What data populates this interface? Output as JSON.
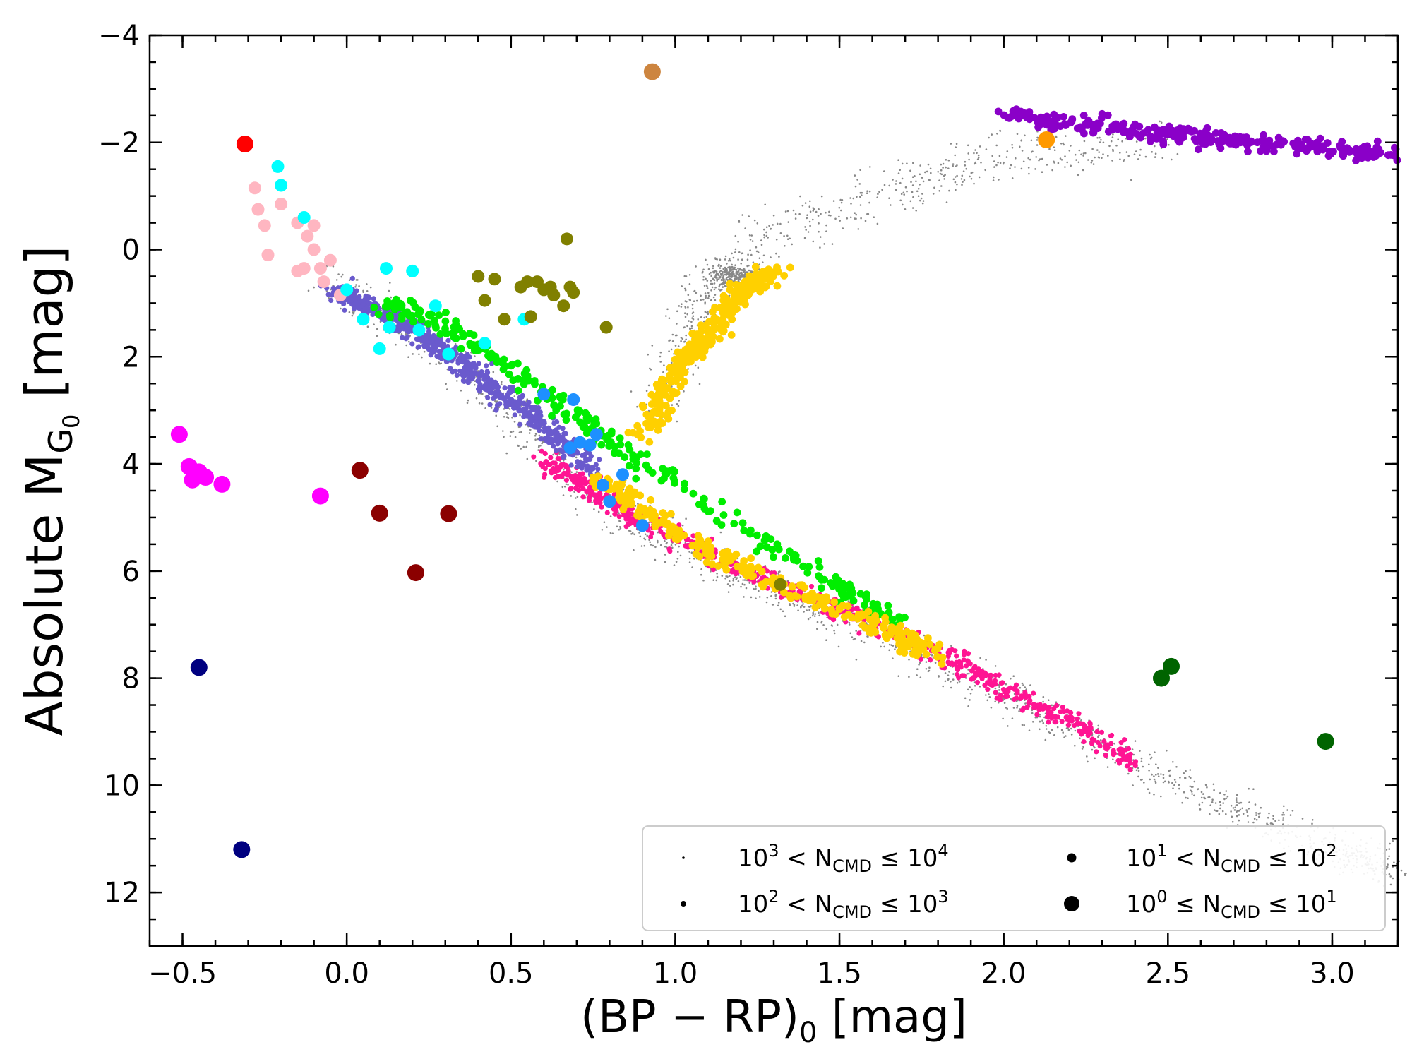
{
  "chart_data": {
    "type": "scatter",
    "xlabel_parts": [
      "(BP",
      " − ",
      "RP)",
      "0",
      " [mag]"
    ],
    "ylabel_parts": [
      "Absolute M",
      "G",
      "0",
      " [mag]"
    ],
    "xlim": [
      -0.6,
      3.2
    ],
    "ylim": [
      13.0,
      -4.0
    ],
    "y_inverted": true,
    "x_ticks": [
      -0.5,
      0.0,
      0.5,
      1.0,
      1.5,
      2.0,
      2.5,
      3.0
    ],
    "x_tick_labels": [
      "−0.5",
      "0.0",
      "0.5",
      "1.0",
      "1.5",
      "2.0",
      "2.5",
      "3.0"
    ],
    "y_ticks": [
      -4,
      -2,
      0,
      2,
      4,
      6,
      8,
      10,
      12
    ],
    "y_tick_labels": [
      "−4",
      "−2",
      "0",
      "2",
      "4",
      "6",
      "8",
      "10",
      "12"
    ],
    "grid": false,
    "legend_position": "lower-right",
    "legend": [
      {
        "base": "10",
        "exp1": "3",
        "mid": " < N",
        "sub": "CMD",
        "rel": " ≤ 10",
        "exp2": "4",
        "size_class": "tiny"
      },
      {
        "base": "10",
        "exp1": "1",
        "mid": " < N",
        "sub": "CMD",
        "rel": " ≤ 10",
        "exp2": "2",
        "size_class": "medium"
      },
      {
        "base": "10",
        "exp1": "2",
        "mid": " < N",
        "sub": "CMD",
        "rel": " ≤ 10",
        "exp2": "3",
        "size_class": "small"
      },
      {
        "base": "10",
        "exp1": "0",
        "mid": " ≤ N",
        "sub": "CMD",
        "rel": " ≤ 10",
        "exp2": "1",
        "size_class": "large"
      }
    ],
    "background_field": {
      "color": "#888888",
      "main_sequence": [
        [
          -0.05,
          0.6
        ],
        [
          0.2,
          1.5
        ],
        [
          0.5,
          3.0
        ],
        [
          0.7,
          4.3
        ],
        [
          0.9,
          5.2
        ],
        [
          1.2,
          6.1
        ],
        [
          1.5,
          6.9
        ],
        [
          1.8,
          7.7
        ],
        [
          2.1,
          8.6
        ],
        [
          2.4,
          9.6
        ],
        [
          2.7,
          10.4
        ],
        [
          3.0,
          11.2
        ],
        [
          3.2,
          11.6
        ]
      ],
      "giant_branch": [
        [
          0.95,
          3.0
        ],
        [
          1.05,
          1.5
        ],
        [
          1.12,
          0.6
        ],
        [
          1.3,
          -0.3
        ],
        [
          1.6,
          -1.0
        ],
        [
          1.9,
          -1.6
        ],
        [
          2.2,
          -1.9
        ],
        [
          2.5,
          -2.0
        ]
      ],
      "red_clump": {
        "x": 1.18,
        "y": 0.5
      }
    },
    "series": [
      {
        "color": "#ff1493",
        "size_class": "small",
        "curve": [
          [
            0.6,
            3.9
          ],
          [
            0.75,
            4.5
          ],
          [
            0.9,
            5.1
          ],
          [
            1.2,
            6.0
          ],
          [
            1.5,
            6.7
          ],
          [
            1.8,
            7.5
          ],
          [
            2.0,
            8.2
          ],
          [
            2.2,
            8.8
          ],
          [
            2.4,
            9.6
          ]
        ]
      },
      {
        "color": "#6a5acd",
        "size_class": "small",
        "curve": [
          [
            -0.05,
            0.7
          ],
          [
            0.15,
            1.3
          ],
          [
            0.3,
            1.9
          ],
          [
            0.45,
            2.6
          ],
          [
            0.6,
            3.3
          ],
          [
            0.75,
            4.1
          ]
        ]
      },
      {
        "color": "#00ee00",
        "size_class": "medium",
        "curve": [
          [
            0.1,
            1.0
          ],
          [
            0.3,
            1.4
          ],
          [
            0.5,
            2.2
          ],
          [
            0.7,
            3.1
          ],
          [
            0.9,
            4.0
          ],
          [
            1.2,
            5.2
          ],
          [
            1.5,
            6.3
          ],
          [
            1.7,
            7.0
          ]
        ]
      },
      {
        "color": "#ffd000",
        "size_class": "medium",
        "curve": [
          [
            0.75,
            4.2
          ],
          [
            1.0,
            5.3
          ],
          [
            1.3,
            6.2
          ],
          [
            1.6,
            7.0
          ],
          [
            1.8,
            7.6
          ]
        ]
      },
      {
        "color": "#ffd000",
        "size_class": "medium",
        "curve": [
          [
            0.9,
            3.5
          ],
          [
            1.0,
            2.3
          ],
          [
            1.1,
            1.6
          ],
          [
            1.2,
            0.8
          ],
          [
            1.3,
            0.4
          ]
        ]
      },
      {
        "color": "#8a00c8",
        "size_class": "medium",
        "curve": [
          [
            2.0,
            -2.5
          ],
          [
            2.3,
            -2.3
          ],
          [
            2.6,
            -2.1
          ],
          [
            2.9,
            -1.9
          ],
          [
            3.2,
            -1.8
          ]
        ]
      },
      {
        "color": "#ffb6c1",
        "size_class": "large",
        "points": [
          [
            -0.28,
            -1.15
          ],
          [
            -0.27,
            -0.75
          ],
          [
            -0.25,
            -0.45
          ],
          [
            -0.2,
            -0.85
          ],
          [
            -0.15,
            -0.5
          ],
          [
            -0.12,
            -0.25
          ],
          [
            -0.1,
            0.0
          ],
          [
            -0.08,
            0.35
          ],
          [
            -0.07,
            0.6
          ],
          [
            -0.13,
            0.35
          ],
          [
            -0.15,
            0.4
          ],
          [
            -0.24,
            0.1
          ],
          [
            -0.05,
            0.2
          ],
          [
            -0.1,
            -0.45
          ],
          [
            -0.02,
            0.85
          ]
        ]
      },
      {
        "color": "#00ffff",
        "size_class": "large",
        "points": [
          [
            -0.21,
            -1.55
          ],
          [
            -0.2,
            -1.2
          ],
          [
            -0.13,
            -0.6
          ],
          [
            0.0,
            0.75
          ],
          [
            0.05,
            1.3
          ],
          [
            0.1,
            1.85
          ],
          [
            0.12,
            0.35
          ],
          [
            0.13,
            1.45
          ],
          [
            0.2,
            0.4
          ],
          [
            0.22,
            1.5
          ],
          [
            0.27,
            1.05
          ],
          [
            0.31,
            1.95
          ],
          [
            0.42,
            1.75
          ],
          [
            0.54,
            1.3
          ]
        ]
      },
      {
        "color": "#808000",
        "size_class": "large",
        "points": [
          [
            0.4,
            0.5
          ],
          [
            0.42,
            0.95
          ],
          [
            0.45,
            0.55
          ],
          [
            0.48,
            1.3
          ],
          [
            0.53,
            0.7
          ],
          [
            0.55,
            0.6
          ],
          [
            0.56,
            1.25
          ],
          [
            0.58,
            0.6
          ],
          [
            0.6,
            0.75
          ],
          [
            0.62,
            0.7
          ],
          [
            0.63,
            0.85
          ],
          [
            0.66,
            1.05
          ],
          [
            0.67,
            -0.2
          ],
          [
            0.68,
            0.7
          ],
          [
            0.69,
            0.8
          ],
          [
            0.79,
            1.45
          ],
          [
            1.32,
            6.25
          ]
        ]
      },
      {
        "color": "#1e90ff",
        "size_class": "large",
        "points": [
          [
            0.6,
            2.7
          ],
          [
            0.69,
            2.8
          ],
          [
            0.68,
            3.7
          ],
          [
            0.71,
            3.6
          ],
          [
            0.74,
            3.65
          ],
          [
            0.76,
            3.45
          ],
          [
            0.78,
            4.4
          ],
          [
            0.8,
            4.7
          ],
          [
            0.84,
            4.2
          ],
          [
            0.9,
            5.15
          ]
        ]
      },
      {
        "color": "#ff00ff",
        "size_class": "xlarge",
        "points": [
          [
            -0.51,
            3.45
          ],
          [
            -0.48,
            4.05
          ],
          [
            -0.47,
            4.3
          ],
          [
            -0.45,
            4.15
          ],
          [
            -0.43,
            4.25
          ],
          [
            -0.38,
            4.38
          ],
          [
            -0.08,
            4.6
          ]
        ]
      },
      {
        "color": "#8b0000",
        "size_class": "xlarge",
        "points": [
          [
            0.04,
            4.12
          ],
          [
            0.1,
            4.92
          ],
          [
            0.21,
            6.03
          ],
          [
            0.31,
            4.93
          ]
        ]
      },
      {
        "color": "#000080",
        "size_class": "xlarge",
        "points": [
          [
            -0.45,
            7.8
          ],
          [
            -0.32,
            11.2
          ]
        ]
      },
      {
        "color": "#006400",
        "size_class": "xlarge",
        "points": [
          [
            2.48,
            8.0
          ],
          [
            2.51,
            7.78
          ],
          [
            2.98,
            9.18
          ]
        ]
      },
      {
        "color": "#ff0000",
        "size_class": "xlarge",
        "points": [
          [
            -0.31,
            -1.97
          ]
        ]
      },
      {
        "color": "#cd853f",
        "size_class": "xlarge",
        "points": [
          [
            0.93,
            -3.32
          ]
        ]
      },
      {
        "color": "#ff9900",
        "size_class": "xlarge",
        "points": [
          [
            2.13,
            -2.05
          ]
        ]
      }
    ]
  }
}
